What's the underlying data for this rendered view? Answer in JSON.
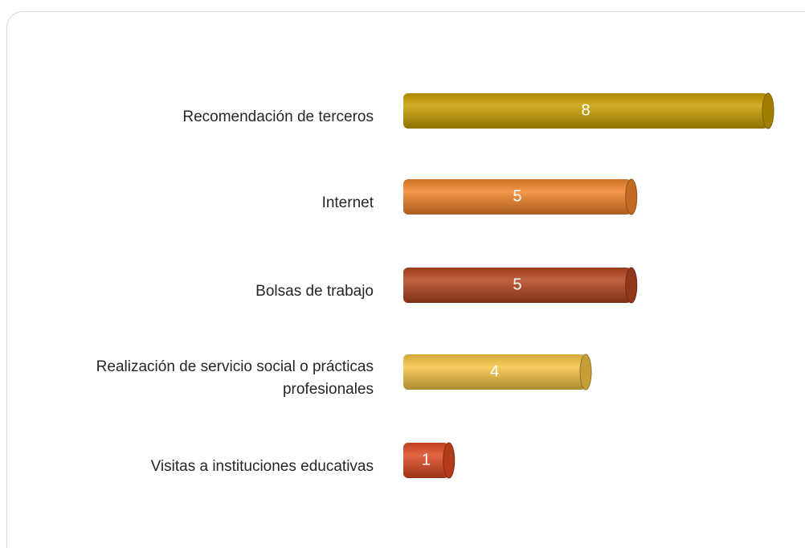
{
  "chart_data": {
    "type": "bar",
    "orientation": "horizontal",
    "categories": [
      "Recomendación de terceros",
      "Internet",
      "Bolsas de trabajo",
      "Realización de servicio social o prácticas profesionales",
      "Visitas a instituciones educativas"
    ],
    "values": [
      8,
      5,
      5,
      4,
      1
    ],
    "colors": [
      "#c9a000",
      "#f2852a",
      "#b54521",
      "#f6c544",
      "#de4a22"
    ]
  }
}
